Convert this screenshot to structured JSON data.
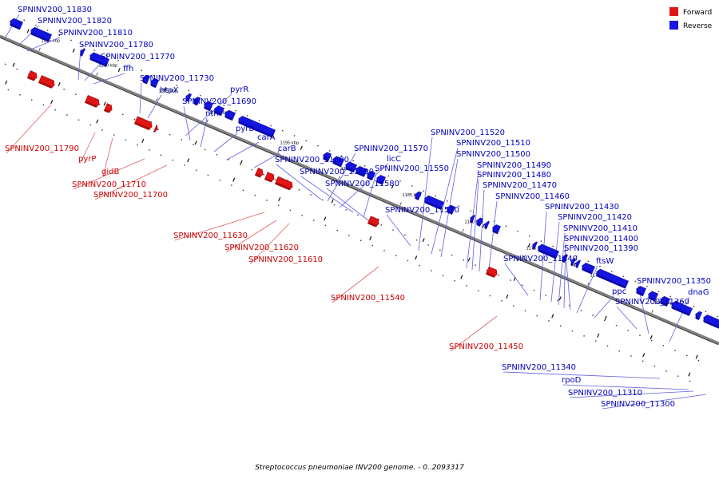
{
  "colors": {
    "forward": "#e01515",
    "reverse": "#1515e0",
    "forward_text": "#cc0000",
    "reverse_text": "#0000bb",
    "forward_line": "#e06060",
    "reverse_line": "#6060e0",
    "backbone": "#808080"
  },
  "legend": [
    {
      "label": "Forward",
      "color": "#e01515"
    },
    {
      "label": "Reverse",
      "color": "#1515e0"
    }
  ],
  "caption": "Streptococcus pneumoniae INV200 genome. - 0..2093317",
  "ticks": [
    "1215 kbp",
    "1210 kbp",
    "1205 kbp",
    "1200 kbp",
    "1195 kbp",
    "1190 kbp",
    "1185 kbp",
    "1180 kbp",
    "1175 kbp",
    "1170 kbp",
    "1165 kbp"
  ],
  "reverse_labels": [
    "SPNINV200_11830",
    "SPNINV200_11820",
    "SPNINV200_11810",
    "SPNINV200_11780",
    "SPNINV200_11770",
    "ffh",
    "SPNINV200_11730",
    "htpX",
    "pyrR",
    "SPNINV200_11690",
    "nth",
    "pyrB",
    "carA",
    "carB",
    "SPNINV200_11600",
    "SPNINV200_11570",
    "licC",
    "SPNINV200_11590",
    "SPNINV200_11550",
    "SPNINV200_11580",
    "SPNINV200_11530",
    "SPNINV200_11520",
    "SPNINV200_11510",
    "SPNINV200_11500",
    "SPNINV200_11490",
    "SPNINV200_11480",
    "SPNINV200_11470",
    "SPNINV200_11460",
    "SPNINV200_11440",
    "SPNINV200_11430",
    "SPNINV200_11420",
    "SPNINV200_11410",
    "SPNINV200_11400",
    "SPNINV200_11390",
    "ftsW",
    "ppc",
    "SPNINV200_11360",
    "SPNINV200_11350",
    "dnaG",
    "SPNINV200_11340",
    "rpoD",
    "SPNINV200_11310",
    "SPNINV200_11300"
  ],
  "forward_labels": [
    "SPNINV200_11790",
    "pyrP",
    "gidB",
    "SPNINV200_11710",
    "SPNINV200_11700",
    "SPNINV200_11630",
    "SPNINV200_11620",
    "SPNINV200_11610",
    "SPNINV200_11540",
    "SPNINV200_11450"
  ]
}
